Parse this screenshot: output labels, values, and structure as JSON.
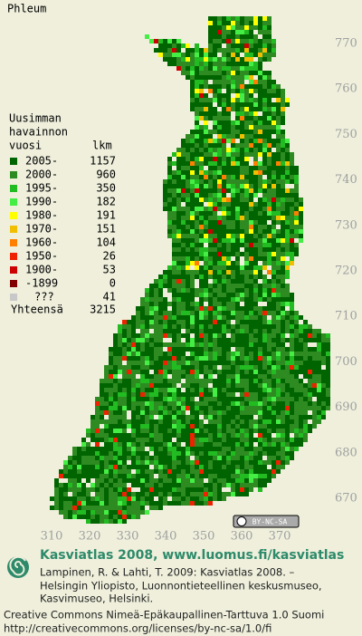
{
  "title": "Phleum",
  "legend": {
    "heading": [
      "Uusimman",
      "havainnon"
    ],
    "col_year": "vuosi",
    "col_count": "lkm",
    "rows": [
      {
        "label": "2005-",
        "count": 1157,
        "color": "#006400"
      },
      {
        "label": "2000-",
        "count": 960,
        "color": "#2e8b22"
      },
      {
        "label": "1995-",
        "count": 350,
        "color": "#22bb22"
      },
      {
        "label": "1990-",
        "count": 182,
        "color": "#44ee44"
      },
      {
        "label": "1980-",
        "count": 191,
        "color": "#ffff00"
      },
      {
        "label": "1970-",
        "count": 151,
        "color": "#f0c000"
      },
      {
        "label": "1960-",
        "count": 104,
        "color": "#ff8000"
      },
      {
        "label": "1950-",
        "count": 26,
        "color": "#ee2200"
      },
      {
        "label": "1900-",
        "count": 53,
        "color": "#cc0000"
      },
      {
        "label": "-1899",
        "count": 0,
        "color": "#800000"
      },
      {
        "label": "???",
        "count": 41,
        "color": "#c8c8c8"
      }
    ],
    "total_label": "Yhteensä",
    "total": 3215
  },
  "y_axis": [
    770,
    760,
    750,
    740,
    730,
    720,
    710,
    700,
    690,
    680,
    670
  ],
  "x_axis": [
    310,
    320,
    330,
    340,
    350,
    360,
    370
  ],
  "license_badge": "BY-NC-SA",
  "brand": "Kasviatlas 2008, www.luomus.fi/kasviatlas",
  "citation": [
    "Lampinen, R. & Lahti, T. 2009: Kasviatlas 2008. –",
    "Helsingin Yliopisto, Luonnontieteellinen keskusmuseo,",
    "Kasvimuseo, Helsinki."
  ],
  "license": [
    "Creative Commons Nimeä-Epäkaupallinen-Tarttuva 1.0 Suomi",
    "http://creativecommons.org/licenses/by-nc-sa/1.0/fi"
  ]
}
